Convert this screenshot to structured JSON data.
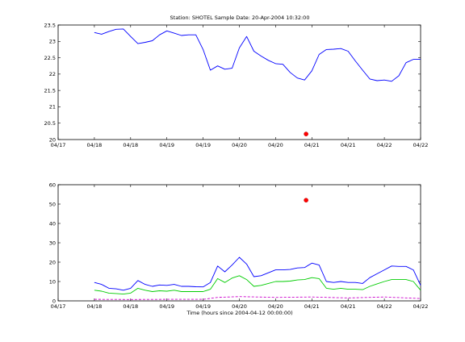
{
  "chart_data": [
    {
      "type": "line",
      "title": "Station: SHOTEL Sample Date: 20-Apr-2004 10:32:00",
      "xlabel": "",
      "ylabel": "",
      "xlim": [
        0,
        5
      ],
      "ylim": [
        20,
        23.5
      ],
      "xticks": [
        0,
        0.5,
        1,
        1.5,
        2,
        2.5,
        3,
        3.5,
        4,
        4.5,
        5
      ],
      "xtick_labels": [
        "04/17",
        "04/18",
        "04/18",
        "04/19",
        "04/19",
        "04/20",
        "04/20",
        "04/21",
        "04/21",
        "04/22",
        "04/22"
      ],
      "yticks": [
        20,
        20.5,
        21,
        21.5,
        22,
        22.5,
        23,
        23.5
      ],
      "ytick_labels": [
        "20",
        "20.5",
        "21",
        "21.5",
        "22",
        "22.5",
        "23",
        "23.5"
      ],
      "series": [
        {
          "color": "#0000ff",
          "x": [
            0.5,
            0.6,
            0.7,
            0.8,
            0.9,
            1.0,
            1.1,
            1.2,
            1.3,
            1.4,
            1.5,
            1.6,
            1.7,
            1.8,
            1.9,
            2.0,
            2.1,
            2.2,
            2.3,
            2.4,
            2.5,
            2.6,
            2.7,
            2.8,
            2.9,
            3.0,
            3.1,
            3.2,
            3.3,
            3.4,
            3.5,
            3.6,
            3.7,
            3.8,
            3.9,
            4.0,
            4.1,
            4.2,
            4.3,
            4.4,
            4.5,
            4.6,
            4.7,
            4.8,
            4.9,
            5.0
          ],
          "y": [
            23.27,
            23.22,
            23.3,
            23.37,
            23.38,
            23.15,
            22.93,
            22.97,
            23.02,
            23.2,
            23.32,
            23.25,
            23.18,
            23.2,
            23.2,
            22.75,
            22.12,
            22.25,
            22.15,
            22.18,
            22.8,
            23.15,
            22.7,
            22.55,
            22.42,
            22.32,
            22.3,
            22.05,
            21.88,
            21.82,
            22.1,
            22.6,
            22.75,
            22.76,
            22.78,
            22.7,
            22.4,
            22.12,
            21.85,
            21.8,
            21.82,
            21.78,
            21.95,
            22.35,
            22.45,
            22.45
          ]
        }
      ],
      "points": [
        {
          "color": "#ff0000",
          "x": 3.42,
          "y": 20.17
        }
      ]
    },
    {
      "type": "line",
      "title": "",
      "xlabel": "Time (hours since 2004-04-12 00:00:00)",
      "ylabel": "",
      "xlim": [
        0,
        5
      ],
      "ylim": [
        0,
        60
      ],
      "xticks": [
        0,
        0.5,
        1,
        1.5,
        2,
        2.5,
        3,
        3.5,
        4,
        4.5,
        5
      ],
      "xtick_labels": [
        "04/17",
        "04/18",
        "04/18",
        "04/19",
        "04/19",
        "04/20",
        "04/20",
        "04/21",
        "04/21",
        "04/22",
        "04/22"
      ],
      "yticks": [
        0,
        10,
        20,
        30,
        40,
        50,
        60
      ],
      "ytick_labels": [
        "0",
        "10",
        "20",
        "30",
        "40",
        "50",
        "60"
      ],
      "series": [
        {
          "color": "#0000ff",
          "x": [
            0.5,
            0.6,
            0.7,
            0.8,
            0.9,
            1.0,
            1.1,
            1.2,
            1.3,
            1.4,
            1.5,
            1.6,
            1.7,
            1.8,
            1.9,
            2.0,
            2.1,
            2.2,
            2.3,
            2.4,
            2.5,
            2.6,
            2.7,
            2.8,
            2.9,
            3.0,
            3.1,
            3.2,
            3.3,
            3.4,
            3.5,
            3.6,
            3.7,
            3.8,
            3.9,
            4.0,
            4.1,
            4.2,
            4.3,
            4.4,
            4.5,
            4.6,
            4.7,
            4.8,
            4.9,
            5.0
          ],
          "y": [
            9.5,
            8.5,
            6.5,
            6.2,
            5.5,
            6.5,
            10.5,
            8.5,
            7.5,
            8.2,
            8.0,
            8.5,
            7.5,
            7.5,
            7.3,
            7.2,
            9.5,
            18.0,
            15.0,
            18.5,
            22.5,
            19.0,
            12.5,
            13.0,
            14.5,
            16.0,
            16.0,
            16.2,
            17.0,
            17.2,
            19.5,
            18.5,
            10.0,
            9.5,
            10.0,
            9.5,
            9.5,
            9.0,
            12.0,
            14.0,
            16.0,
            18.0,
            17.8,
            17.8,
            16.0,
            8.0
          ]
        },
        {
          "color": "#00cc00",
          "x": [
            0.5,
            0.6,
            0.7,
            0.8,
            0.9,
            1.0,
            1.1,
            1.2,
            1.3,
            1.4,
            1.5,
            1.6,
            1.7,
            1.8,
            1.9,
            2.0,
            2.1,
            2.2,
            2.3,
            2.4,
            2.5,
            2.6,
            2.7,
            2.8,
            2.9,
            3.0,
            3.1,
            3.2,
            3.3,
            3.4,
            3.5,
            3.6,
            3.7,
            3.8,
            3.9,
            4.0,
            4.1,
            4.2,
            4.3,
            4.4,
            4.5,
            4.6,
            4.7,
            4.8,
            4.9,
            5.0
          ],
          "y": [
            5.5,
            5.0,
            4.0,
            3.8,
            3.5,
            4.0,
            6.5,
            5.5,
            4.8,
            5.2,
            5.0,
            5.5,
            4.8,
            4.8,
            4.8,
            4.8,
            6.0,
            11.5,
            9.5,
            11.8,
            13.0,
            11.0,
            7.5,
            8.0,
            9.0,
            10.0,
            10.0,
            10.2,
            10.8,
            11.0,
            12.0,
            11.5,
            6.5,
            6.0,
            6.5,
            6.0,
            6.0,
            5.8,
            7.5,
            8.8,
            10.0,
            11.0,
            11.0,
            11.0,
            10.0,
            5.5
          ]
        },
        {
          "color": "#cc00cc",
          "dashed": true,
          "x": [
            0.5,
            1.0,
            1.5,
            2.0,
            2.2,
            2.5,
            3.0,
            3.5,
            4.0,
            4.5,
            5.0
          ],
          "y": [
            0.8,
            0.7,
            0.8,
            0.8,
            1.8,
            2.2,
            1.8,
            2.0,
            1.5,
            2.0,
            1.2
          ]
        }
      ],
      "points": [
        {
          "color": "#ff0000",
          "x": 3.42,
          "y": 52
        }
      ]
    }
  ]
}
